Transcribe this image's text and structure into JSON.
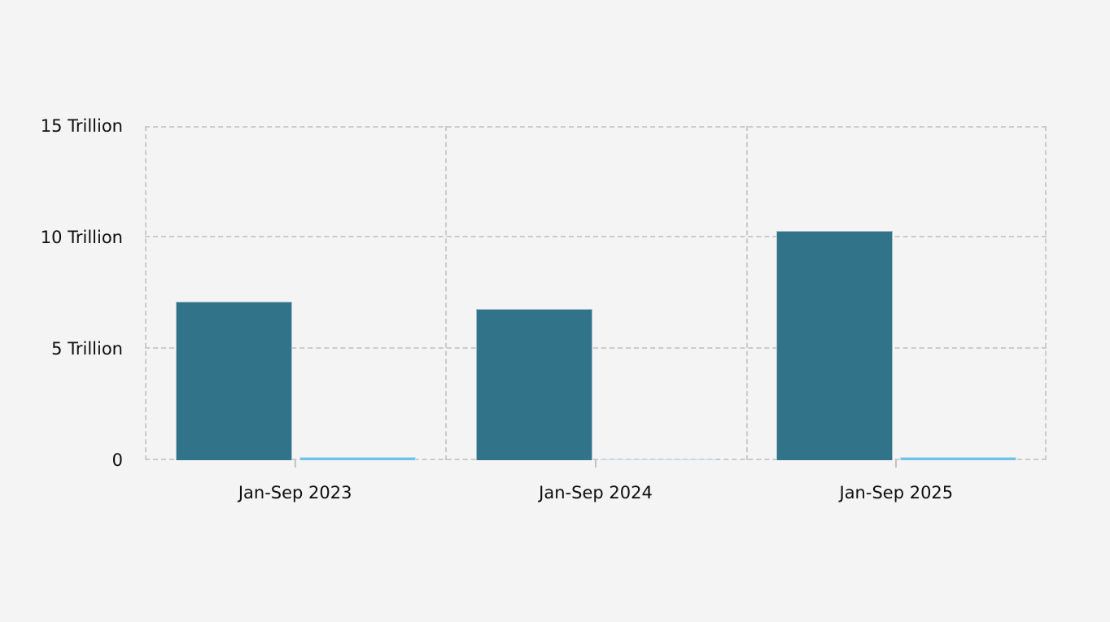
{
  "page": {
    "background_color": "#f4f4f5"
  },
  "colors": {
    "teal_bar": "#317389",
    "light_blue_bar": "#70c1e6",
    "gridline": "#cbcbcb",
    "tick": "#c2c2c2",
    "text": "#0e0e0e"
  },
  "chart_data": {
    "type": "bar",
    "title": "",
    "categories": [
      "Jan-Sep 2023",
      "Jan-Sep 2024",
      "Jan-Sep 2025"
    ],
    "series": [
      {
        "name": "teal-series",
        "color": "#317389",
        "values": [
          7.1,
          6.8,
          10.3
        ]
      },
      {
        "name": "light-blue-series",
        "color": "#70c1e6",
        "values": [
          0.15,
          0.05,
          0.15
        ]
      }
    ],
    "xlabel": "",
    "ylabel": "",
    "unit": "Trillion",
    "ytick_labels": [
      "0",
      "5 Trillion",
      "10 Trillion",
      "15 Trillion"
    ],
    "ytick_values": [
      0,
      5,
      10,
      15
    ],
    "ylim": [
      0,
      15
    ],
    "grid": "dashed",
    "legend_position": "none"
  }
}
